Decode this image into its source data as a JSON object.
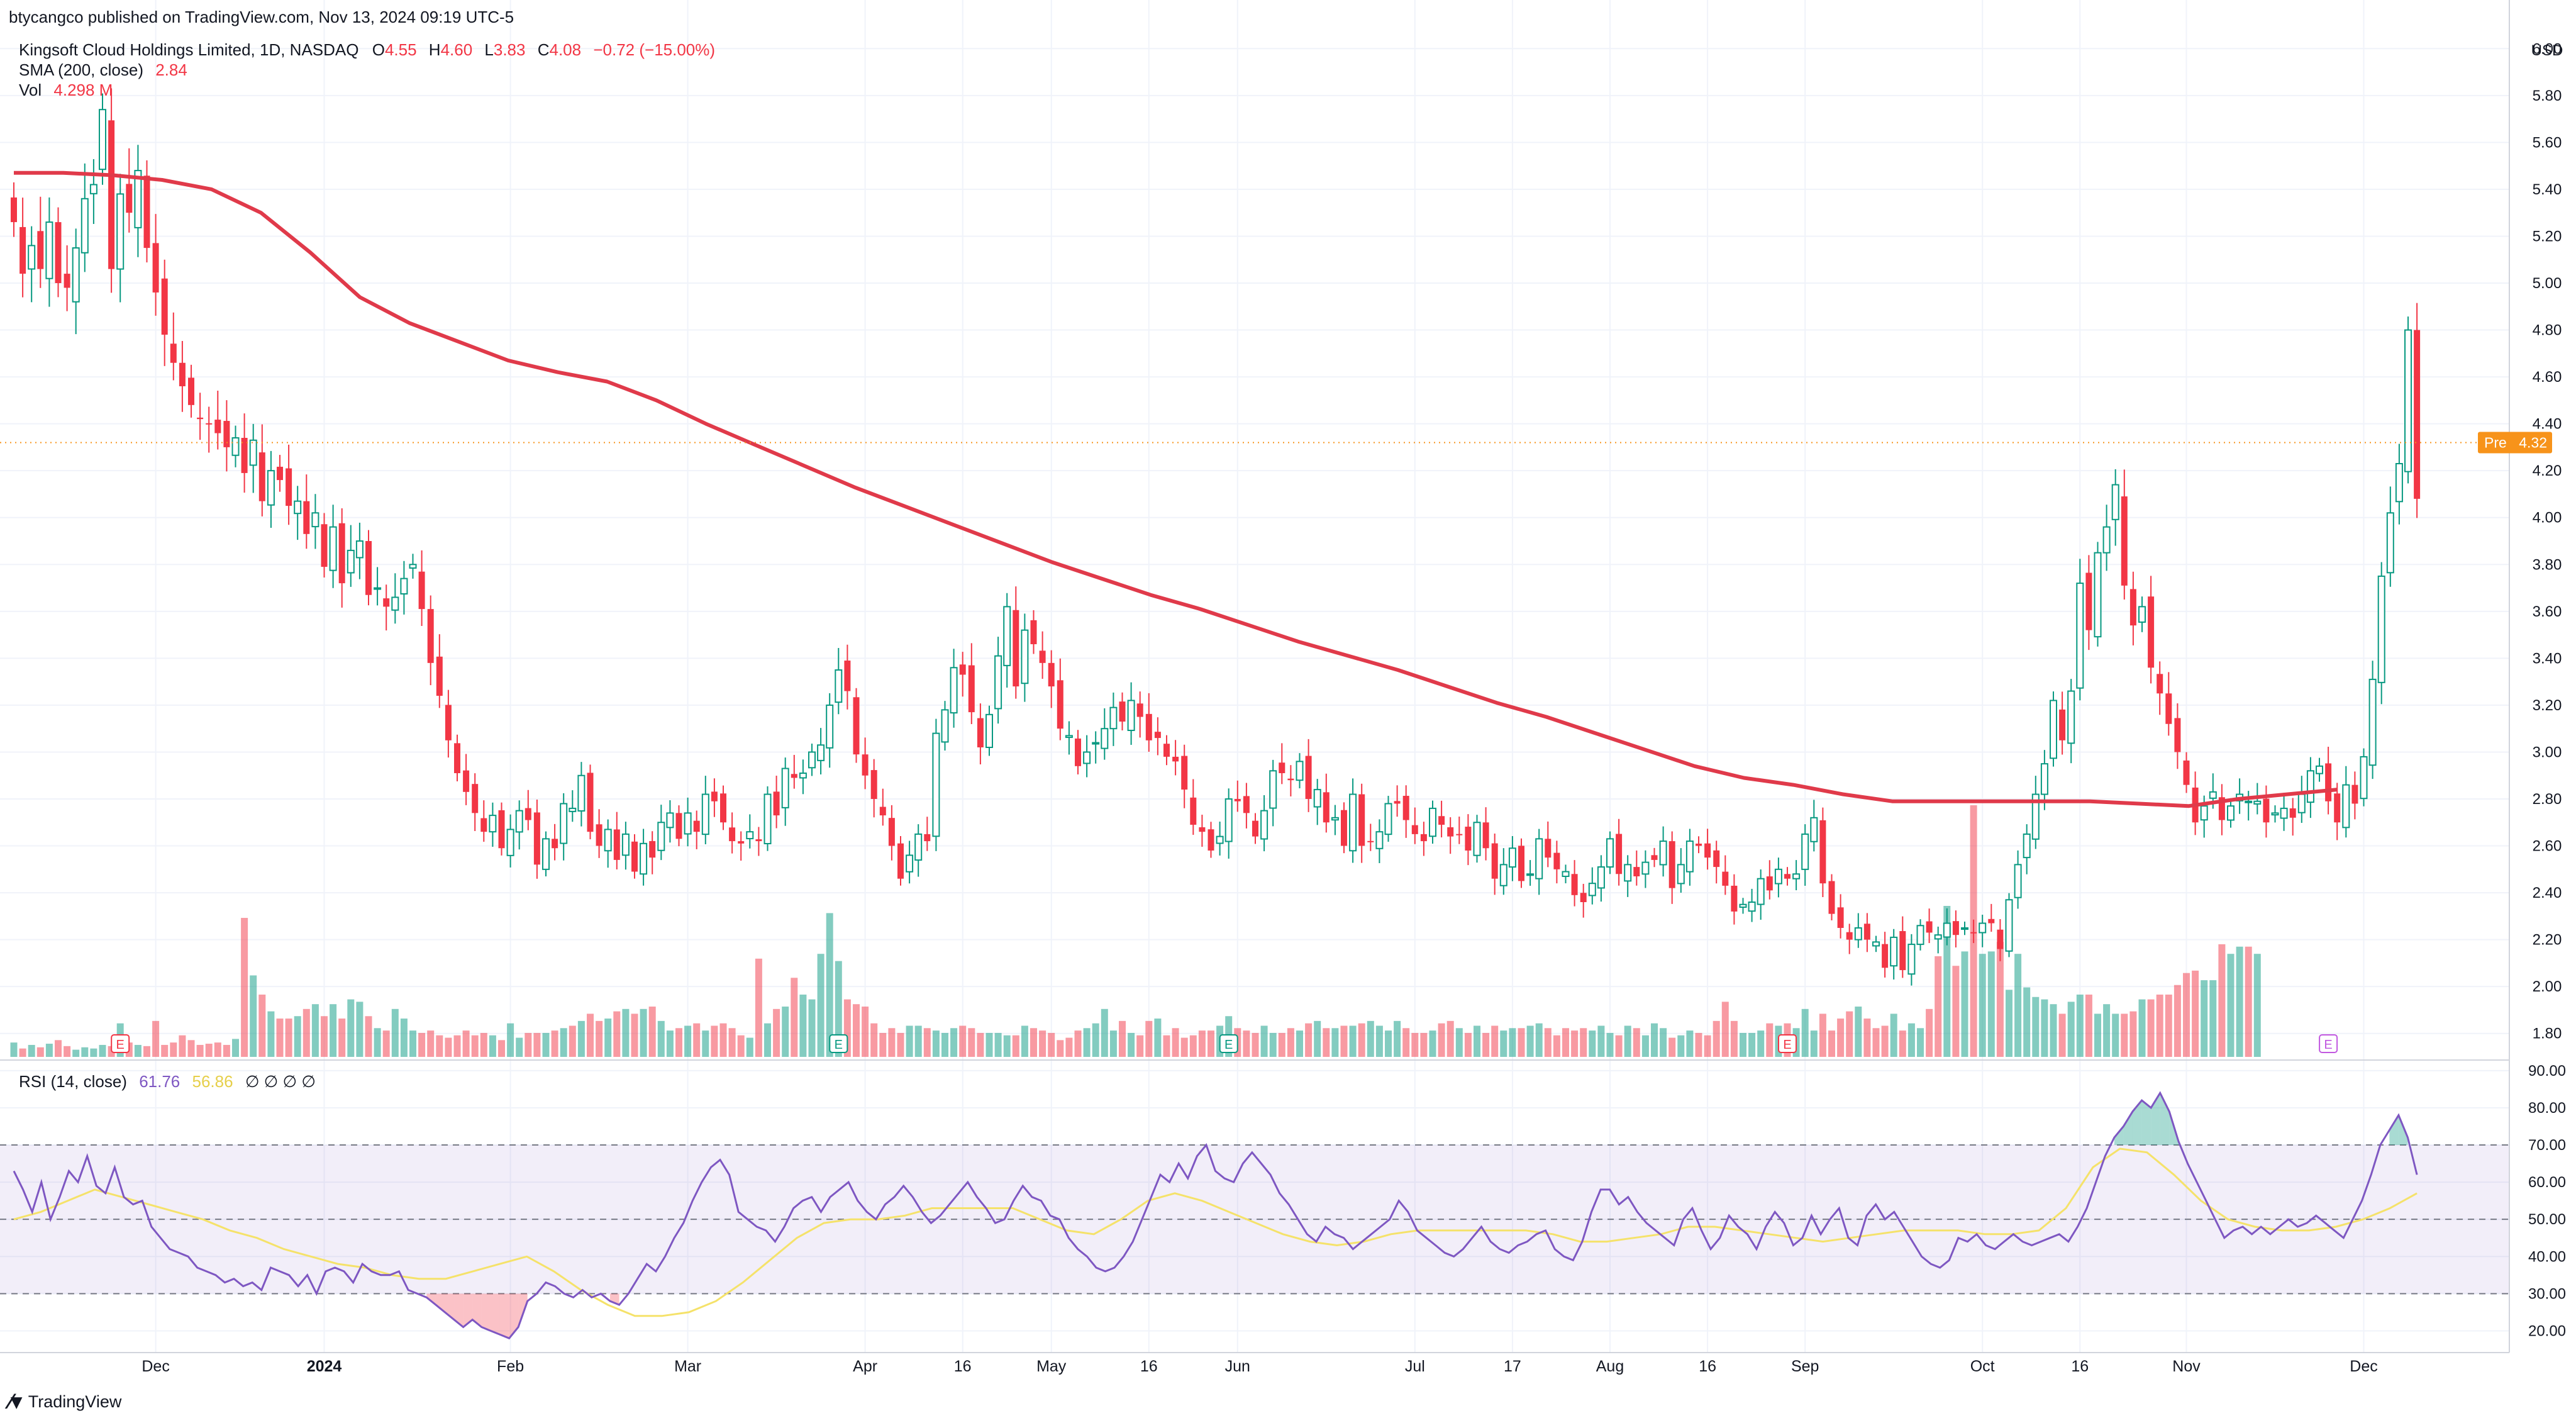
{
  "publisher": "btycangco published on TradingView.com, Nov 13, 2024 09:19 UTC-5",
  "legend": {
    "symbol": "Kingsoft Cloud Holdings Limited, 1D, NASDAQ",
    "o_label": "O",
    "o_value": "4.55",
    "h_label": "H",
    "h_value": "4.60",
    "l_label": "L",
    "l_value": "3.83",
    "c_label": "C",
    "c_value": "4.08",
    "change": "−0.72 (−15.00%)",
    "sma_label": "SMA (200, close)",
    "sma_value": "2.84",
    "vol_label": "Vol",
    "vol_value": "4.298 M"
  },
  "rsi_legend": {
    "label": "RSI (14, close)",
    "rsi_value": "61.76",
    "ma_value": "56.86",
    "extras": "∅ ∅ ∅ ∅"
  },
  "currency": "USD",
  "pre_tag": {
    "label": "Pre",
    "value": "4.32"
  },
  "footer_brand": "TradingView",
  "colors": {
    "up": "#089981",
    "down": "#f23645",
    "sma": "#e03a4a",
    "rsi": "#7e57c2",
    "rsi_ma": "#f5e26a",
    "pre": "#f7931a"
  },
  "chart_data": [
    {
      "type": "candlestick",
      "title": "Kingsoft Cloud Holdings Limited, 1D, NASDAQ",
      "ylabel": "USD",
      "ylim": [
        1.7,
        6.1
      ],
      "y_ticks": [
        "6.00",
        "5.80",
        "5.60",
        "5.40",
        "5.20",
        "5.00",
        "4.80",
        "4.60",
        "4.40",
        "4.20",
        "4.00",
        "3.80",
        "3.60",
        "3.40",
        "3.20",
        "3.00",
        "2.80",
        "2.60",
        "2.40",
        "2.20",
        "2.00",
        "1.80"
      ],
      "x_ticks": [
        {
          "label": "Dec",
          "bar": 16
        },
        {
          "label": "2024",
          "bar": 35
        },
        {
          "label": "Feb",
          "bar": 56
        },
        {
          "label": "Mar",
          "bar": 76
        },
        {
          "label": "Apr",
          "bar": 96
        },
        {
          "label": "16",
          "bar": 107
        },
        {
          "label": "May",
          "bar": 117
        },
        {
          "label": "16",
          "bar": 128
        },
        {
          "label": "Jun",
          "bar": 138
        },
        {
          "label": "Jul",
          "bar": 158
        },
        {
          "label": "17",
          "bar": 169
        },
        {
          "label": "Aug",
          "bar": 180
        },
        {
          "label": "16",
          "bar": 191
        },
        {
          "label": "Sep",
          "bar": 202
        },
        {
          "label": "Oct",
          "bar": 222
        },
        {
          "label": "16",
          "bar": 233
        },
        {
          "label": "Nov",
          "bar": 245
        },
        {
          "label": "Dec",
          "bar": 265
        }
      ],
      "earnings_markers": [
        {
          "label": "E",
          "bar": 12
        },
        {
          "label": "E",
          "bar": 93
        },
        {
          "label": "E",
          "bar": 137
        },
        {
          "label": "E",
          "bar": 200
        },
        {
          "label": "E",
          "bar": 261
        }
      ],
      "close": [
        5.26,
        5.04,
        5.16,
        5.06,
        5.26,
        5.0,
        4.98,
        5.15,
        5.36,
        5.42,
        5.74,
        5.06,
        5.38,
        5.3,
        5.48,
        5.15,
        4.96,
        4.78,
        4.66,
        4.56,
        4.48,
        4.42,
        4.4,
        4.36,
        4.3,
        4.34,
        4.19,
        4.33,
        4.07,
        4.2,
        4.16,
        4.05,
        4.07,
        3.93,
        4.02,
        3.79,
        3.96,
        3.72,
        3.86,
        3.9,
        3.67,
        3.7,
        3.62,
        3.66,
        3.74,
        3.8,
        3.61,
        3.38,
        3.24,
        3.05,
        2.91,
        2.83,
        2.74,
        2.66,
        2.73,
        2.59,
        2.67,
        2.75,
        2.71,
        2.52,
        2.63,
        2.59,
        2.78,
        2.76,
        2.9,
        2.66,
        2.6,
        2.67,
        2.54,
        2.65,
        2.49,
        2.61,
        2.55,
        2.7,
        2.74,
        2.63,
        2.74,
        2.66,
        2.82,
        2.79,
        2.7,
        2.62,
        2.61,
        2.66,
        2.62,
        2.82,
        2.73,
        2.93,
        2.89,
        2.91,
        3.0,
        3.03,
        3.2,
        3.35,
        3.26,
        2.99,
        2.9,
        2.8,
        2.73,
        2.6,
        2.46,
        2.56,
        2.65,
        2.62,
        3.08,
        3.18,
        3.36,
        3.33,
        3.17,
        3.02,
        3.16,
        3.41,
        3.62,
        3.28,
        3.52,
        3.46,
        3.38,
        3.28,
        3.1,
        3.07,
        2.94,
        3.0,
        3.04,
        3.1,
        3.19,
        3.13,
        3.22,
        3.15,
        3.05,
        3.06,
        2.98,
        2.96,
        2.84,
        2.69,
        2.66,
        2.58,
        2.64,
        2.8,
        2.79,
        2.74,
        2.64,
        2.75,
        2.92,
        2.91,
        2.88,
        2.96,
        2.8,
        2.84,
        2.7,
        2.72,
        2.6,
        2.82,
        2.6,
        2.62,
        2.66,
        2.78,
        2.78,
        2.71,
        2.65,
        2.62,
        2.76,
        2.69,
        2.64,
        2.65,
        2.58,
        2.7,
        2.59,
        2.46,
        2.52,
        2.59,
        2.45,
        2.48,
        2.63,
        2.55,
        2.5,
        2.49,
        2.39,
        2.36,
        2.44,
        2.51,
        2.63,
        2.48,
        2.52,
        2.47,
        2.53,
        2.54,
        2.62,
        2.42,
        2.52,
        2.62,
        2.6,
        2.55,
        2.51,
        2.43,
        2.32,
        2.35,
        2.36,
        2.46,
        2.41,
        2.5,
        2.46,
        2.48,
        2.65,
        2.72,
        2.44,
        2.31,
        2.25,
        2.2,
        2.25,
        2.2,
        2.19,
        2.08,
        2.21,
        2.07,
        2.18,
        2.26,
        2.23,
        2.22,
        2.27,
        2.22,
        2.25,
        2.23,
        2.27,
        2.27,
        2.16,
        2.37,
        2.52,
        2.65,
        2.82,
        2.95,
        3.22,
        3.05,
        3.26,
        3.72,
        3.52,
        3.85,
        3.96,
        4.14,
        3.71,
        3.54,
        3.62,
        3.36,
        3.25,
        3.12,
        3.0,
        2.86,
        2.7,
        2.77,
        2.83,
        2.71,
        2.77,
        2.82,
        2.79,
        2.79,
        2.7,
        2.74,
        2.76,
        2.72,
        2.82,
        2.92,
        2.94,
        2.79,
        2.7,
        2.86,
        2.78,
        2.98,
        3.31,
        3.75,
        4.02,
        4.23,
        4.8,
        4.08
      ],
      "volume_millions": [
        0.6,
        0.35,
        0.5,
        0.4,
        0.55,
        0.7,
        0.45,
        0.3,
        0.4,
        0.35,
        0.5,
        0.45,
        1.4,
        0.6,
        0.5,
        0.45,
        1.5,
        0.5,
        0.6,
        0.9,
        0.7,
        0.5,
        0.55,
        0.6,
        0.5,
        0.75,
        5.8,
        3.4,
        2.6,
        1.9,
        1.6,
        1.6,
        1.7,
        2.0,
        2.2,
        1.7,
        2.2,
        1.6,
        2.4,
        2.3,
        1.7,
        1.2,
        1.1,
        2.0,
        1.6,
        1.1,
        1.0,
        1.1,
        0.9,
        0.8,
        0.9,
        1.1,
        0.9,
        1.0,
        0.9,
        0.7,
        1.4,
        0.8,
        1.0,
        1.0,
        1.0,
        1.1,
        1.2,
        1.3,
        1.5,
        1.8,
        1.5,
        1.6,
        1.9,
        2.0,
        1.8,
        2.0,
        2.1,
        1.5,
        1.1,
        1.2,
        1.3,
        1.4,
        1.1,
        1.3,
        1.4,
        1.2,
        0.9,
        0.8,
        4.1,
        1.4,
        2.0,
        2.1,
        3.3,
        2.6,
        2.4,
        4.3,
        6.0,
        4.0,
        2.4,
        2.2,
        2.1,
        1.4,
        1.0,
        1.2,
        1.0,
        1.3,
        1.3,
        1.2,
        1.1,
        1.0,
        1.2,
        1.3,
        1.2,
        1.0,
        1.0,
        1.0,
        0.9,
        0.9,
        1.3,
        1.2,
        1.1,
        1.0,
        0.7,
        0.8,
        1.1,
        1.2,
        1.4,
        2.0,
        1.1,
        1.5,
        1.0,
        0.9,
        1.5,
        1.6,
        0.9,
        1.2,
        0.8,
        0.9,
        1.1,
        1.1,
        1.3,
        1.7,
        1.2,
        1.1,
        1.0,
        1.3,
        1.0,
        1.0,
        1.2,
        1.1,
        1.4,
        1.5,
        1.2,
        1.2,
        1.3,
        1.3,
        1.4,
        1.5,
        1.3,
        1.1,
        1.5,
        1.2,
        1.0,
        1.0,
        1.1,
        1.4,
        1.5,
        1.2,
        1.0,
        1.3,
        1.0,
        1.3,
        1.1,
        1.2,
        1.2,
        1.3,
        1.4,
        1.2,
        0.9,
        1.2,
        1.1,
        1.2,
        1.1,
        1.3,
        1.0,
        0.9,
        1.3,
        1.2,
        0.9,
        1.4,
        1.2,
        0.8,
        0.9,
        1.1,
        1.0,
        0.9,
        1.5,
        2.3,
        1.5,
        1.0,
        1.0,
        1.1,
        1.4,
        1.3,
        1.4,
        1.2,
        2.0,
        1.1,
        1.8,
        1.1,
        1.6,
        1.9,
        2.1,
        1.6,
        1.2,
        1.3,
        1.8,
        1.1,
        1.4,
        1.2,
        2.0,
        4.2,
        6.3,
        3.8,
        4.4,
        10.5,
        4.3,
        4.4,
        4.8,
        2.8,
        4.3,
        2.9,
        2.5,
        2.4,
        2.2,
        1.8,
        2.3,
        2.6,
        2.6,
        1.8,
        2.2,
        1.8,
        1.8,
        1.9,
        2.4,
        2.4,
        2.6,
        2.6,
        3.0,
        3.5,
        3.6,
        3.2,
        3.2,
        4.7,
        4.3,
        4.6,
        4.6,
        4.3
      ],
      "sma200": [
        5.47,
        5.47,
        5.46,
        5.44,
        5.4,
        5.3,
        5.13,
        4.94,
        4.83,
        4.75,
        4.67,
        4.62,
        4.58,
        4.5,
        4.4,
        4.31,
        4.22,
        4.13,
        4.05,
        3.97,
        3.89,
        3.81,
        3.74,
        3.67,
        3.61,
        3.54,
        3.47,
        3.41,
        3.35,
        3.28,
        3.21,
        3.15,
        3.08,
        3.01,
        2.94,
        2.89,
        2.86,
        2.82,
        2.79,
        2.79,
        2.79,
        2.79,
        2.79,
        2.78,
        2.77,
        2.8,
        2.82,
        2.84
      ],
      "sma200_end_bar": 262
    },
    {
      "type": "line",
      "title": "RSI (14, close)",
      "ylim": [
        15,
        92
      ],
      "y_ticks": [
        "90.00",
        "80.00",
        "70.00",
        "60.00",
        "50.00",
        "40.00",
        "30.00",
        "20.00"
      ],
      "bands": [
        30,
        50,
        70
      ],
      "series": [
        {
          "name": "RSI",
          "values": [
            63,
            58,
            52,
            60,
            50,
            56,
            63,
            60,
            67,
            59,
            57,
            64,
            56,
            54,
            55,
            48,
            45,
            42,
            41,
            40,
            37,
            36,
            35,
            33,
            34,
            32,
            33,
            31,
            37,
            36,
            35,
            32,
            35,
            30,
            36,
            37,
            36,
            33,
            38,
            36,
            35,
            35,
            36,
            31,
            30,
            29,
            27,
            25,
            23,
            21,
            23,
            21,
            20,
            19,
            18,
            21,
            28,
            30,
            33,
            32,
            30,
            29,
            31,
            29,
            30,
            28,
            27,
            30,
            34,
            38,
            36,
            40,
            45,
            49,
            55,
            60,
            64,
            66,
            62,
            52,
            50,
            48,
            47,
            44,
            48,
            53,
            55,
            56,
            52,
            56,
            58,
            60,
            55,
            52,
            50,
            54,
            56,
            59,
            56,
            52,
            49,
            51,
            54,
            57,
            60,
            56,
            53,
            49,
            50,
            55,
            59,
            56,
            55,
            51,
            50,
            45,
            42,
            40,
            37,
            36,
            37,
            40,
            44,
            50,
            56,
            62,
            60,
            65,
            61,
            67,
            70,
            63,
            61,
            60,
            65,
            68,
            65,
            62,
            57,
            54,
            50,
            46,
            44,
            48,
            46,
            45,
            42,
            44,
            46,
            48,
            50,
            55,
            52,
            47,
            45,
            43,
            41,
            40,
            42,
            45,
            48,
            44,
            42,
            41,
            43,
            44,
            46,
            47,
            42,
            40,
            39,
            44,
            52,
            58,
            58,
            54,
            56,
            52,
            49,
            47,
            45,
            43,
            50,
            53,
            47,
            42,
            45,
            51,
            48,
            46,
            42,
            48,
            52,
            49,
            43,
            45,
            51,
            46,
            50,
            53,
            45,
            43,
            51,
            54,
            50,
            52,
            48,
            44,
            40,
            38,
            37,
            39,
            45,
            44,
            46,
            43,
            42,
            44,
            46,
            44,
            43,
            44,
            45,
            46,
            44,
            48,
            53,
            60,
            67,
            72,
            75,
            79,
            82,
            80,
            84,
            79,
            71,
            65,
            60,
            55,
            50,
            45,
            47,
            48,
            46,
            48,
            46,
            48,
            50,
            48,
            49,
            51,
            49,
            47,
            45,
            50,
            55,
            62,
            70,
            74,
            78,
            72,
            62
          ]
        },
        {
          "name": "RSI-based MA",
          "values": [
            50,
            52,
            55,
            58,
            56,
            54,
            52,
            50,
            47,
            45,
            42,
            40,
            38,
            37,
            35,
            34,
            34,
            36,
            38,
            40,
            36,
            31,
            27,
            24,
            24,
            25,
            28,
            33,
            39,
            45,
            49,
            50,
            50,
            51,
            53,
            53,
            53,
            53,
            50,
            47,
            46,
            50,
            55,
            57,
            55,
            52,
            49,
            46,
            44,
            43,
            44,
            46,
            47,
            47,
            47,
            47,
            47,
            46,
            44,
            44,
            45,
            46,
            48,
            48,
            47,
            46,
            45,
            44,
            45,
            46,
            47,
            47,
            47,
            46,
            46,
            47,
            53,
            64,
            69,
            68,
            62,
            55,
            50,
            48,
            47,
            47,
            48,
            50,
            53,
            57
          ]
        }
      ]
    }
  ]
}
